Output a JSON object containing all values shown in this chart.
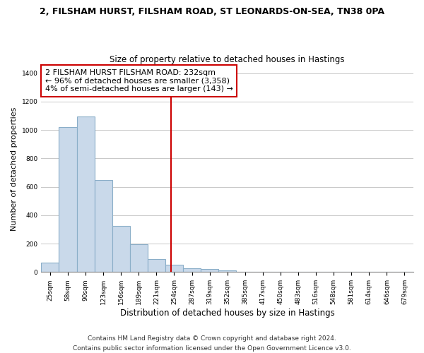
{
  "title": "2, FILSHAM HURST, FILSHAM ROAD, ST LEONARDS-ON-SEA, TN38 0PA",
  "subtitle": "Size of property relative to detached houses in Hastings",
  "xlabel": "Distribution of detached houses by size in Hastings",
  "ylabel": "Number of detached properties",
  "bar_color": "#c9d9ea",
  "bar_edge_color": "#8aaec8",
  "categories": [
    "25sqm",
    "58sqm",
    "90sqm",
    "123sqm",
    "156sqm",
    "189sqm",
    "221sqm",
    "254sqm",
    "287sqm",
    "319sqm",
    "352sqm",
    "385sqm",
    "417sqm",
    "450sqm",
    "483sqm",
    "516sqm",
    "548sqm",
    "581sqm",
    "614sqm",
    "646sqm",
    "679sqm"
  ],
  "values": [
    65,
    1020,
    1095,
    650,
    325,
    195,
    90,
    50,
    25,
    20,
    10,
    0,
    0,
    0,
    0,
    0,
    0,
    0,
    0,
    0,
    0
  ],
  "vline_x_idx": 6.82,
  "vline_color": "#cc0000",
  "annotation_title": "2 FILSHAM HURST FILSHAM ROAD: 232sqm",
  "annotation_line1": "← 96% of detached houses are smaller (3,358)",
  "annotation_line2": "4% of semi-detached houses are larger (143) →",
  "annotation_box_color": "#ffffff",
  "annotation_box_edge": "#cc0000",
  "ylim": [
    0,
    1450
  ],
  "yticks": [
    0,
    200,
    400,
    600,
    800,
    1000,
    1200,
    1400
  ],
  "footer1": "Contains HM Land Registry data © Crown copyright and database right 2024.",
  "footer2": "Contains public sector information licensed under the Open Government Licence v3.0.",
  "bg_color": "#ffffff",
  "grid_color": "#c8c8c8",
  "title_fontsize": 9,
  "subtitle_fontsize": 8.5,
  "ylabel_fontsize": 8,
  "xlabel_fontsize": 8.5,
  "tick_fontsize": 6.5,
  "ann_fontsize": 8,
  "footer_fontsize": 6.5
}
